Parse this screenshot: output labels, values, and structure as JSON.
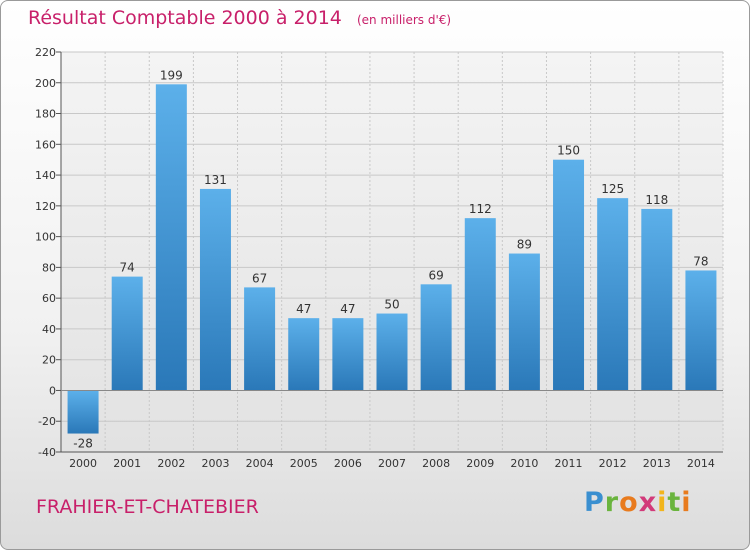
{
  "chart_data": {
    "type": "bar",
    "title": "Résultat Comptable 2000 à 2014",
    "unit_note": "(en milliers d'€)",
    "categories": [
      "2000",
      "2001",
      "2002",
      "2003",
      "2004",
      "2005",
      "2006",
      "2007",
      "2008",
      "2009",
      "2010",
      "2011",
      "2012",
      "2013",
      "2014"
    ],
    "values": [
      -28,
      74,
      199,
      131,
      67,
      47,
      47,
      50,
      69,
      112,
      89,
      150,
      125,
      118,
      78
    ],
    "ylim": [
      -40,
      220
    ],
    "yticks": [
      -40,
      -20,
      0,
      20,
      40,
      60,
      80,
      100,
      120,
      140,
      160,
      180,
      200,
      220
    ],
    "xlabel": "",
    "ylabel": "",
    "grid": true,
    "bar_color": "#3d93d6"
  },
  "footer": {
    "commune": "FRAHIER-ET-CHATEBIER",
    "logo_text": "Proxiti"
  }
}
